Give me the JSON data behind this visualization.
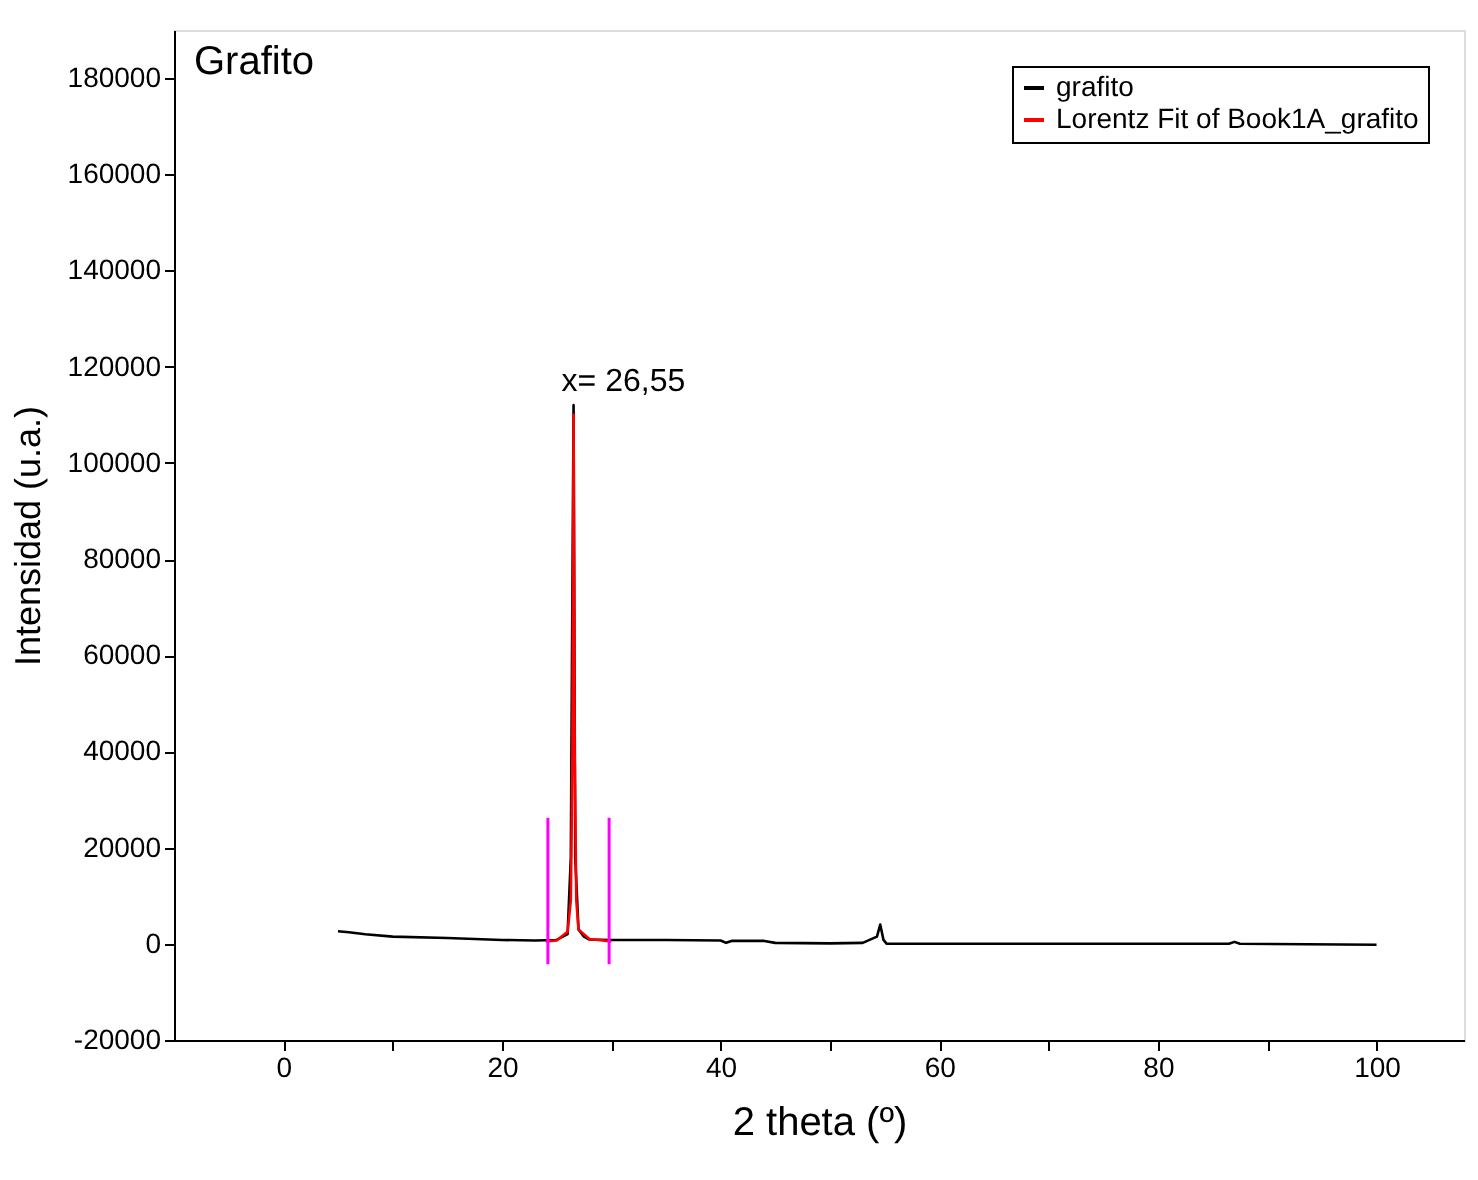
{
  "chart_data": {
    "type": "line",
    "xlabel": "2 theta (º)",
    "ylabel": "Intensidad (u.a.)",
    "annotations": [
      "Grafito",
      {
        "text": "x= 26,55",
        "x": 26.55,
        "y": 112000
      }
    ],
    "xlim": [
      -10,
      108
    ],
    "xticks": [
      0,
      {
        "value": 10,
        "label": null
      },
      20,
      {
        "value": 30,
        "label": null
      },
      40,
      {
        "value": 50,
        "label": null
      },
      60,
      {
        "value": 70,
        "label": null
      },
      80,
      {
        "value": 90,
        "label": null
      },
      100
    ],
    "ylim": [
      -20000,
      190000
    ],
    "yticks": [
      -20000,
      0,
      20000,
      40000,
      60000,
      80000,
      100000,
      120000,
      140000,
      160000,
      180000
    ],
    "grid": false,
    "legend": "top right",
    "marker": "none",
    "line_style": "solid",
    "ref_lines": [
      {
        "axis": "x",
        "value": 24.2,
        "color": "#ff00ff"
      },
      {
        "axis": "x",
        "value": 29.8,
        "color": "#ff00ff"
      }
    ],
    "series": [
      {
        "name": "grafito",
        "color": "#000000",
        "x": [
          5,
          6,
          7.5,
          10,
          15,
          20,
          23,
          25,
          26,
          26.3,
          26.4,
          26.55,
          26.7,
          27,
          27.5,
          28,
          30,
          35,
          40,
          40.5,
          41,
          44,
          45,
          50,
          53,
          54.3,
          54.6,
          54.9,
          55.2,
          60,
          80,
          86.5,
          87,
          87.5,
          100
        ],
        "values": [
          2600,
          2400,
          2000,
          1500,
          1200,
          800,
          700,
          800,
          2000,
          18000,
          57000,
          112000,
          18000,
          3000,
          1500,
          900,
          800,
          800,
          700,
          200,
          600,
          600,
          200,
          100,
          200,
          1500,
          4000,
          800,
          0,
          0,
          0,
          0,
          400,
          0,
          -200
        ]
      },
      {
        "name": "Lorentz Fit of Book1A_grafito",
        "color": "#ff0000",
        "x": [
          24,
          25,
          26,
          26.3,
          26.45,
          26.55,
          26.65,
          26.8,
          27,
          28,
          30
        ],
        "values": [
          500,
          700,
          2500,
          9000,
          40000,
          110000,
          40000,
          9000,
          3000,
          1000,
          500
        ]
      }
    ]
  }
}
